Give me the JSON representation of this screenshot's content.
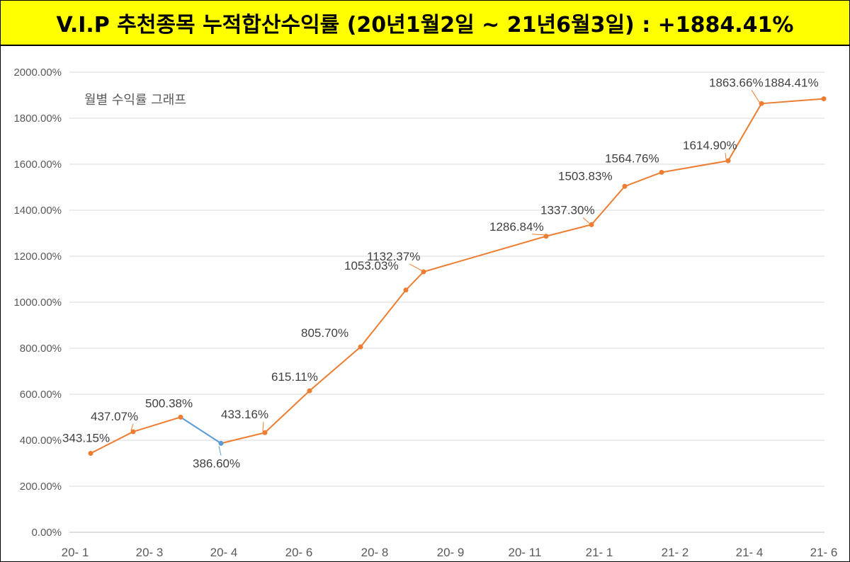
{
  "chart_data": {
    "type": "line",
    "title": "V.I.P 추천종목 누적합산수익률 (20년1월2일 ~ 21년6월3일) : +1884.41%",
    "subtitle": "월별 수익률 그래프",
    "xlabel": "",
    "ylabel": "",
    "ylim": [
      0,
      2000
    ],
    "yticks": [
      0,
      200,
      400,
      600,
      800,
      1000,
      1200,
      1400,
      1600,
      1800,
      2000
    ],
    "ytick_labels": [
      "0.00%",
      "200.00%",
      "400.00%",
      "600.00%",
      "800.00%",
      "1000.00%",
      "1200.00%",
      "1400.00%",
      "1600.00%",
      "1800.00%",
      "2000.00%"
    ],
    "x_axis_labels": [
      "20- 1",
      "20- 3",
      "20- 4",
      "20- 6",
      "20- 8",
      "20- 9",
      "20- 11",
      "21- 1",
      "21- 2",
      "21- 4",
      "21- 6"
    ],
    "grid": true,
    "series": [
      {
        "name": "누적합산수익률",
        "color": "#ed7d31",
        "highlight_color": "#5b9bd5",
        "values": [
          343.15,
          437.07,
          500.38,
          386.6,
          433.16,
          615.11,
          805.7,
          1053.03,
          1132.37,
          1286.84,
          1337.3,
          1503.83,
          1564.76,
          1614.9,
          1863.66,
          1884.41
        ],
        "labels": [
          "343.15%",
          "437.07%",
          "500.38%",
          "386.60%",
          "433.16%",
          "615.11%",
          "805.70%",
          "1053.03%",
          "1132.37%",
          "1286.84%",
          "1337.30%",
          "1503.83%",
          "1564.76%",
          "1614.90%",
          "1863.66%",
          "1884.41%"
        ]
      }
    ]
  }
}
